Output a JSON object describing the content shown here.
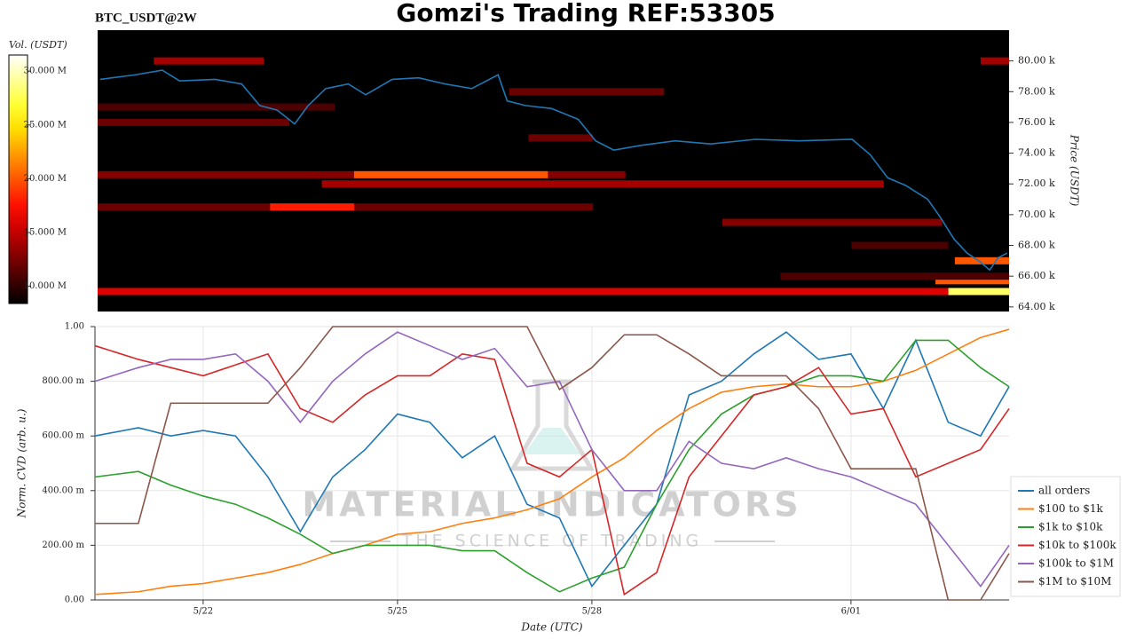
{
  "header": {
    "title": "Gomzi's Trading REF:53305",
    "subtitle": "BTC_USDT@2W"
  },
  "watermark": {
    "brand": "MATERIAL INDICATORS",
    "tagline": "THE SCIENCE OF TRADING"
  },
  "chart_data": [
    {
      "type": "heatmap",
      "ylabel": "Price (USDT)",
      "xlim": [
        -1.67,
        12.44
      ],
      "ylim": [
        63700,
        82000
      ],
      "yticks": [
        {
          "value": 64000,
          "label": "64.00 k"
        },
        {
          "value": 66000,
          "label": "66.00 k"
        },
        {
          "value": 68000,
          "label": "68.00 k"
        },
        {
          "value": 70000,
          "label": "70.00 k"
        },
        {
          "value": 72000,
          "label": "72.00 k"
        },
        {
          "value": 74000,
          "label": "74.00 k"
        },
        {
          "value": 76000,
          "label": "76.00 k"
        },
        {
          "value": 78000,
          "label": "78.00 k"
        },
        {
          "value": 80000,
          "label": "80.00 k"
        }
      ],
      "colorbar": {
        "label": "Vol. (USDT)",
        "lim": [
          8.4,
          31.5
        ],
        "ticks": [
          {
            "value": 10,
            "label": "10.000 M"
          },
          {
            "value": 15,
            "label": "15.000 M"
          },
          {
            "value": 20,
            "label": "20.000 M"
          },
          {
            "value": 25,
            "label": "25.000 M"
          },
          {
            "value": 30,
            "label": "30.000 M"
          }
        ]
      },
      "heatmap": {
        "price": [
          65000,
          65000,
          65700,
          67000,
          69500,
          70500,
          70500,
          72000,
          72600,
          72600,
          75000,
          76000,
          77000,
          80000,
          80000,
          78000,
          66000,
          68000
        ],
        "start": [
          -1.67,
          11.5,
          11.3,
          11.6,
          8.0,
          -1.67,
          1.0,
          1.8,
          -1.67,
          2.3,
          5.0,
          -1.67,
          -1.67,
          -0.8,
          12.0,
          4.7,
          8.9,
          10.0
        ],
        "end": [
          12.44,
          12.44,
          12.44,
          12.44,
          11.4,
          6.0,
          2.3,
          10.5,
          6.5,
          5.3,
          6.0,
          1.3,
          2.0,
          0.9,
          12.44,
          7.1,
          12.44,
          11.5
        ],
        "values": [
          16,
          28,
          20,
          20,
          13,
          12,
          18,
          14,
          13,
          20,
          12,
          12,
          11,
          14,
          14,
          12,
          11,
          11
        ]
      },
      "price": {
        "color": "#1f77b4",
        "x": [
          -1.63,
          -1.08,
          -0.67,
          -0.4,
          0.15,
          0.56,
          0.84,
          1.11,
          1.38,
          1.59,
          1.86,
          2.21,
          2.48,
          2.89,
          3.3,
          3.71,
          4.12,
          4.53,
          4.67,
          4.95,
          5.36,
          5.77,
          6.04,
          6.32,
          6.73,
          7.27,
          7.82,
          8.51,
          9.19,
          10.01,
          10.29,
          10.56,
          10.84,
          11.18,
          11.38,
          11.59,
          11.79,
          12.0,
          12.14,
          12.27,
          12.41
        ],
        "values": [
          78800,
          79100,
          79400,
          78700,
          78800,
          78500,
          77100,
          76800,
          75900,
          77100,
          78200,
          78500,
          77800,
          78800,
          78900,
          78500,
          78200,
          79100,
          77400,
          77100,
          76900,
          76200,
          74800,
          74200,
          74500,
          74800,
          74600,
          74900,
          74800,
          74900,
          73900,
          72400,
          71900,
          71000,
          69800,
          68400,
          67500,
          66900,
          66400,
          67200,
          67500
        ]
      }
    },
    {
      "type": "line",
      "xlabel": "Date (UTC)",
      "ylabel": "Norm. CVD (arb. u.)",
      "xlim": [
        -1.67,
        12.44
      ],
      "xticks": [
        {
          "value": 0,
          "label": "5/22"
        },
        {
          "value": 3,
          "label": "5/25"
        },
        {
          "value": 6,
          "label": "5/28"
        },
        {
          "value": 10,
          "label": "6/01"
        }
      ],
      "ylim": [
        0,
        1
      ],
      "yticks": [
        {
          "value": 0,
          "label": "0.00"
        },
        {
          "value": 0.2,
          "label": "200.00 m"
        },
        {
          "value": 0.4,
          "label": "400.00 m"
        },
        {
          "value": 0.6,
          "label": "600.00 m"
        },
        {
          "value": 0.8,
          "label": "800.00 m"
        },
        {
          "value": 1,
          "label": "1.00"
        }
      ],
      "grid": true,
      "legend": "lower right",
      "x": [
        -1.67,
        -1,
        -0.5,
        0,
        0.5,
        1,
        1.5,
        2,
        2.5,
        3,
        3.5,
        4,
        4.5,
        5,
        5.5,
        6,
        6.5,
        7,
        7.5,
        8,
        8.5,
        9,
        9.5,
        10,
        10.5,
        11,
        11.5,
        12,
        12.44
      ],
      "series": [
        {
          "name": "all orders",
          "color": "#1f77b4",
          "values": [
            0.6,
            0.63,
            0.6,
            0.62,
            0.6,
            0.45,
            0.25,
            0.45,
            0.55,
            0.68,
            0.65,
            0.52,
            0.6,
            0.35,
            0.3,
            0.05,
            0.2,
            0.35,
            0.75,
            0.8,
            0.9,
            0.98,
            0.88,
            0.9,
            0.7,
            0.95,
            0.65,
            0.6,
            0.78
          ]
        },
        {
          "name": "$100 to $1k",
          "color": "#ff7f0e",
          "values": [
            0.02,
            0.03,
            0.05,
            0.06,
            0.08,
            0.1,
            0.13,
            0.17,
            0.2,
            0.24,
            0.25,
            0.28,
            0.3,
            0.33,
            0.37,
            0.45,
            0.52,
            0.62,
            0.7,
            0.76,
            0.78,
            0.79,
            0.78,
            0.78,
            0.8,
            0.84,
            0.9,
            0.96,
            0.99
          ]
        },
        {
          "name": "$1k to $10k",
          "color": "#2ca02c",
          "values": [
            0.45,
            0.47,
            0.42,
            0.38,
            0.35,
            0.3,
            0.24,
            0.17,
            0.2,
            0.2,
            0.2,
            0.18,
            0.18,
            0.1,
            0.03,
            0.08,
            0.12,
            0.35,
            0.55,
            0.68,
            0.75,
            0.78,
            0.82,
            0.82,
            0.8,
            0.95,
            0.95,
            0.85,
            0.78
          ]
        },
        {
          "name": "$10k to $100k",
          "color": "#d62728",
          "values": [
            0.93,
            0.88,
            0.85,
            0.82,
            0.86,
            0.9,
            0.7,
            0.65,
            0.75,
            0.82,
            0.82,
            0.9,
            0.88,
            0.5,
            0.45,
            0.55,
            0.02,
            0.1,
            0.45,
            0.6,
            0.75,
            0.78,
            0.85,
            0.68,
            0.7,
            0.45,
            0.5,
            0.55,
            0.7
          ]
        },
        {
          "name": "$100k to $1M",
          "color": "#9467bd",
          "values": [
            0.8,
            0.85,
            0.88,
            0.88,
            0.9,
            0.8,
            0.65,
            0.8,
            0.9,
            0.98,
            0.93,
            0.88,
            0.92,
            0.78,
            0.8,
            0.55,
            0.4,
            0.4,
            0.58,
            0.5,
            0.48,
            0.52,
            0.48,
            0.45,
            0.4,
            0.35,
            0.2,
            0.05,
            0.2
          ]
        },
        {
          "name": "$1M to $10M",
          "color": "#8c564b",
          "values": [
            0.28,
            0.28,
            0.72,
            0.72,
            0.72,
            0.72,
            0.85,
            1,
            1,
            1,
            1,
            1,
            1,
            1,
            0.77,
            0.85,
            0.97,
            0.97,
            0.9,
            0.82,
            0.82,
            0.82,
            0.7,
            0.48,
            0.48,
            0.48,
            0,
            0,
            0.17
          ]
        }
      ]
    }
  ]
}
